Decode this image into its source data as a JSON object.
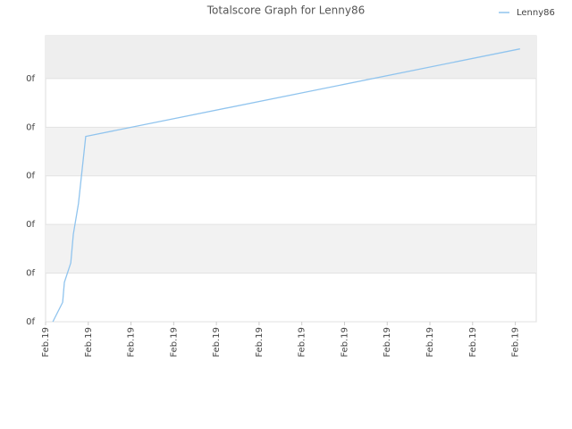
{
  "chart_data": {
    "type": "line",
    "title": "Totalscore Graph for Lenny86",
    "x": [
      0.17,
      0.4,
      0.44,
      0.59,
      0.65,
      0.77,
      0.94,
      11.11
    ],
    "series": [
      {
        "name": "Lenny86",
        "color": "#90c4ee",
        "values": [
          0,
          0.4,
          0.81,
          1.21,
          1.8,
          2.43,
          3.81,
          5.61
        ]
      }
    ],
    "xlim": [
      0,
      11.49
    ],
    "xticks": [
      {
        "value": 0,
        "label": "Feb.19"
      },
      {
        "value": 1,
        "label": "Feb.19"
      },
      {
        "value": 2,
        "label": "Feb.19"
      },
      {
        "value": 3,
        "label": "Feb.19"
      },
      {
        "value": 4,
        "label": "Feb.19"
      },
      {
        "value": 5,
        "label": "Feb.19"
      },
      {
        "value": 6,
        "label": "Feb.19"
      },
      {
        "value": 7,
        "label": "Feb.19"
      },
      {
        "value": 8,
        "label": "Feb.19"
      },
      {
        "value": 9,
        "label": "Feb.19"
      },
      {
        "value": 10,
        "label": "Feb.19"
      },
      {
        "value": 11,
        "label": "Feb.19"
      }
    ],
    "ylim": [
      0,
      5.88
    ],
    "yticks": [
      {
        "value": 0,
        "label": "0f"
      },
      {
        "value": 1,
        "label": "0f"
      },
      {
        "value": 2,
        "label": "0f"
      },
      {
        "value": 3,
        "label": "0f"
      },
      {
        "value": 4,
        "label": "0f"
      },
      {
        "value": 5,
        "label": "0f"
      }
    ],
    "grid": true,
    "legend": "top-right"
  }
}
